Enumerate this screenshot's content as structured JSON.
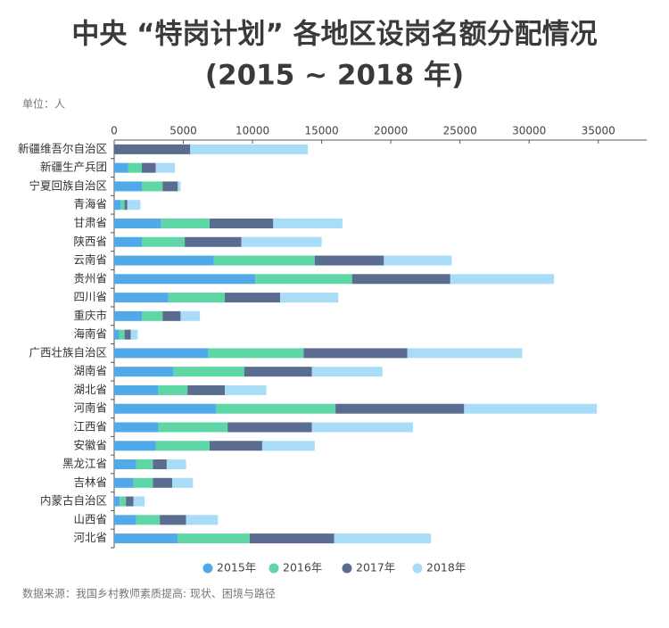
{
  "chart_data": {
    "type": "bar",
    "orientation": "horizontal",
    "stacked": true,
    "title": "中央 “特岗计划” 各地区设岗名额分配情况",
    "subtitle": "(2015 ~ 2018 年)",
    "unit_label": "单位：人",
    "source": "数据来源：我国乡村教师素质提高: 现状、困境与路径",
    "categories": [
      "新疆维吾尔自治区",
      "新疆生产兵团",
      "宁夏回族自治区",
      "青海省",
      "甘肃省",
      "陕西省",
      "云南省",
      "贵州省",
      "四川省",
      "重庆市",
      "海南省",
      "广西壮族自治区",
      "湖南省",
      "湖北省",
      "河南省",
      "江西省",
      "安徽省",
      "黑龙江省",
      "吉林省",
      "内蒙古自治区",
      "山西省",
      "河北省"
    ],
    "series": [
      {
        "name": "2015年",
        "color": "#52a9ea",
        "values": [
          0,
          1000,
          2000,
          450,
          3400,
          2000,
          7200,
          10200,
          3900,
          2000,
          350,
          6800,
          4300,
          3200,
          7400,
          3200,
          3000,
          1600,
          1400,
          400,
          1600,
          4600
        ]
      },
      {
        "name": "2016年",
        "color": "#5ed6a5",
        "values": [
          0,
          1000,
          1500,
          300,
          3500,
          3100,
          7300,
          7000,
          4100,
          1500,
          400,
          6900,
          5100,
          2100,
          8600,
          5000,
          3900,
          1200,
          1400,
          450,
          1700,
          5200
        ]
      },
      {
        "name": "2017年",
        "color": "#5a6c90",
        "values": [
          5500,
          1000,
          1100,
          200,
          4600,
          4100,
          5000,
          7100,
          4000,
          1300,
          450,
          7500,
          4900,
          2700,
          9300,
          6100,
          3800,
          1000,
          1400,
          550,
          1900,
          6100
        ]
      },
      {
        "name": "2018年",
        "color": "#a9dcf7",
        "values": [
          8500,
          1400,
          200,
          950,
          5000,
          5800,
          4900,
          7500,
          4200,
          1400,
          500,
          8300,
          5100,
          3000,
          9600,
          7300,
          3800,
          1400,
          1500,
          800,
          2300,
          7000
        ]
      }
    ],
    "xlim": [
      0,
      38500
    ],
    "xticks": [
      0,
      5000,
      10000,
      15000,
      20000,
      25000,
      30000,
      35000
    ],
    "legend": "bottom"
  }
}
